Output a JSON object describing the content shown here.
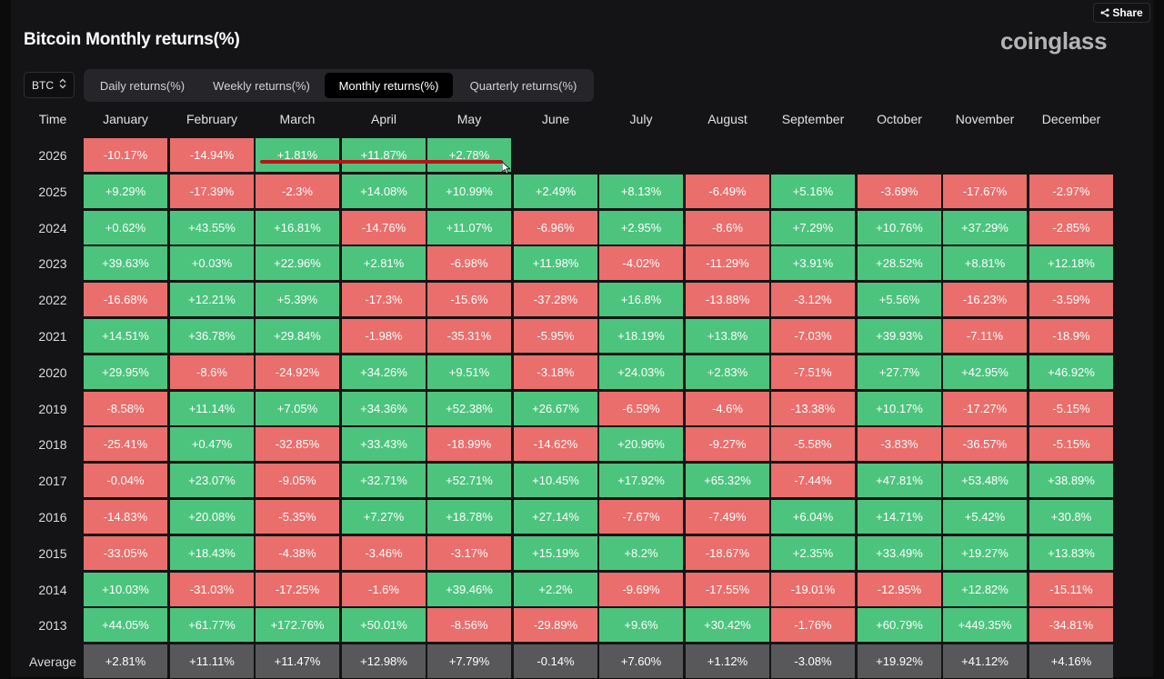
{
  "page": {
    "title": "Bitcoin Monthly returns(%)",
    "logo": "coinglass",
    "share_label": "Share",
    "asset_select": "BTC",
    "tabs": [
      {
        "label": "Daily returns(%)",
        "active": false
      },
      {
        "label": "Weekly returns(%)",
        "active": false
      },
      {
        "label": "Monthly returns(%)",
        "active": true
      },
      {
        "label": "Quarterly returns(%)",
        "active": false
      }
    ],
    "time_header": "Time",
    "colors": {
      "positive": "#4cc47e",
      "negative": "#ea6e6c",
      "average": "#58585b"
    },
    "icons": [
      "share-icon",
      "sort-arrows-icon",
      "cursor-arrow-icon"
    ]
  },
  "chart_data": {
    "type": "table",
    "title": "Bitcoin Monthly returns(%)",
    "columns": [
      "January",
      "February",
      "March",
      "April",
      "May",
      "June",
      "July",
      "August",
      "September",
      "October",
      "November",
      "December"
    ],
    "rows": [
      {
        "year": "2026",
        "values": [
          "-10.17%",
          "-14.94%",
          "+1.81%",
          "+11.87%",
          "+2.78%",
          "",
          "",
          "",
          "",
          "",
          "",
          ""
        ]
      },
      {
        "year": "2025",
        "values": [
          "+9.29%",
          "-17.39%",
          "-2.3%",
          "+14.08%",
          "+10.99%",
          "+2.49%",
          "+8.13%",
          "-6.49%",
          "+5.16%",
          "-3.69%",
          "-17.67%",
          "-2.97%"
        ]
      },
      {
        "year": "2024",
        "values": [
          "+0.62%",
          "+43.55%",
          "+16.81%",
          "-14.76%",
          "+11.07%",
          "-6.96%",
          "+2.95%",
          "-8.6%",
          "+7.29%",
          "+10.76%",
          "+37.29%",
          "-2.85%"
        ]
      },
      {
        "year": "2023",
        "values": [
          "+39.63%",
          "+0.03%",
          "+22.96%",
          "+2.81%",
          "-6.98%",
          "+11.98%",
          "-4.02%",
          "-11.29%",
          "+3.91%",
          "+28.52%",
          "+8.81%",
          "+12.18%"
        ]
      },
      {
        "year": "2022",
        "values": [
          "-16.68%",
          "+12.21%",
          "+5.39%",
          "-17.3%",
          "-15.6%",
          "-37.28%",
          "+16.8%",
          "-13.88%",
          "-3.12%",
          "+5.56%",
          "-16.23%",
          "-3.59%"
        ]
      },
      {
        "year": "2021",
        "values": [
          "+14.51%",
          "+36.78%",
          "+29.84%",
          "-1.98%",
          "-35.31%",
          "-5.95%",
          "+18.19%",
          "+13.8%",
          "-7.03%",
          "+39.93%",
          "-7.11%",
          "-18.9%"
        ]
      },
      {
        "year": "2020",
        "values": [
          "+29.95%",
          "-8.6%",
          "-24.92%",
          "+34.26%",
          "+9.51%",
          "-3.18%",
          "+24.03%",
          "+2.83%",
          "-7.51%",
          "+27.7%",
          "+42.95%",
          "+46.92%"
        ]
      },
      {
        "year": "2019",
        "values": [
          "-8.58%",
          "+11.14%",
          "+7.05%",
          "+34.36%",
          "+52.38%",
          "+26.67%",
          "-6.59%",
          "-4.6%",
          "-13.38%",
          "+10.17%",
          "-17.27%",
          "-5.15%"
        ]
      },
      {
        "year": "2018",
        "values": [
          "-25.41%",
          "+0.47%",
          "-32.85%",
          "+33.43%",
          "-18.99%",
          "-14.62%",
          "+20.96%",
          "-9.27%",
          "-5.58%",
          "-3.83%",
          "-36.57%",
          "-5.15%"
        ]
      },
      {
        "year": "2017",
        "values": [
          "-0.04%",
          "+23.07%",
          "-9.05%",
          "+32.71%",
          "+52.71%",
          "+10.45%",
          "+17.92%",
          "+65.32%",
          "-7.44%",
          "+47.81%",
          "+53.48%",
          "+38.89%"
        ]
      },
      {
        "year": "2016",
        "values": [
          "-14.83%",
          "+20.08%",
          "-5.35%",
          "+7.27%",
          "+18.78%",
          "+27.14%",
          "-7.67%",
          "-7.49%",
          "+6.04%",
          "+14.71%",
          "+5.42%",
          "+30.8%"
        ]
      },
      {
        "year": "2015",
        "values": [
          "-33.05%",
          "+18.43%",
          "-4.38%",
          "-3.46%",
          "-3.17%",
          "+15.19%",
          "+8.2%",
          "-18.67%",
          "+2.35%",
          "+33.49%",
          "+19.27%",
          "+13.83%"
        ]
      },
      {
        "year": "2014",
        "values": [
          "+10.03%",
          "-31.03%",
          "-17.25%",
          "-1.6%",
          "+39.46%",
          "+2.2%",
          "-9.69%",
          "-17.55%",
          "-19.01%",
          "-12.95%",
          "+12.82%",
          "-15.11%"
        ]
      },
      {
        "year": "2013",
        "values": [
          "+44.05%",
          "+61.77%",
          "+172.76%",
          "+50.01%",
          "-8.56%",
          "-29.89%",
          "+9.6%",
          "+30.42%",
          "-1.76%",
          "+60.79%",
          "+449.35%",
          "-34.81%"
        ]
      }
    ],
    "average": {
      "label": "Average",
      "values": [
        "+2.81%",
        "+11.11%",
        "+11.47%",
        "+12.98%",
        "+7.79%",
        "-0.14%",
        "+7.60%",
        "+1.12%",
        "-3.08%",
        "+19.92%",
        "+41.12%",
        "+4.16%"
      ]
    }
  }
}
